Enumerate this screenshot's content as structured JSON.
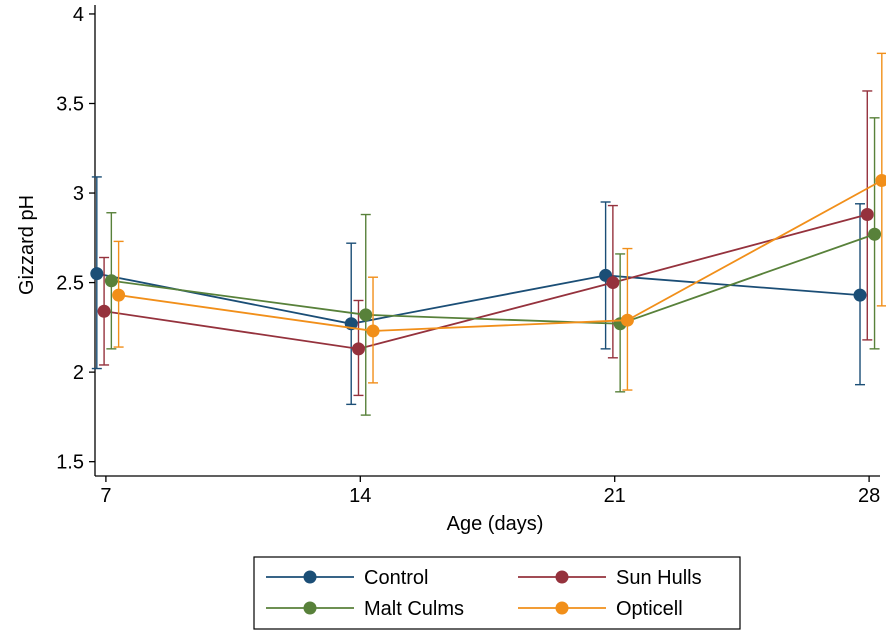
{
  "chart_data": {
    "type": "line",
    "xlabel": "Age (days)",
    "ylabel": "Gizzard pH",
    "x_ticks": [
      7,
      14,
      21,
      28
    ],
    "y_ticks": [
      1.5,
      2,
      2.5,
      3,
      3.5,
      4
    ],
    "y_tick_labels": [
      "1.5",
      "2",
      "2.5",
      "3",
      "3.5",
      "4"
    ],
    "xlim": [
      6.7,
      28.3
    ],
    "ylim": [
      1.42,
      4.05
    ],
    "grid": false,
    "legend_position": "bottom",
    "series": [
      {
        "name": "Control",
        "color": "#1b4e76",
        "x": [
          6.75,
          13.75,
          20.75,
          27.75
        ],
        "y": [
          2.55,
          2.27,
          2.54,
          2.43
        ],
        "err_low": [
          2.02,
          1.82,
          2.13,
          1.93
        ],
        "err_high": [
          3.09,
          2.72,
          2.95,
          2.94
        ]
      },
      {
        "name": "Sun Hulls",
        "color": "#95323d",
        "x": [
          6.95,
          13.95,
          20.95,
          27.95
        ],
        "y": [
          2.34,
          2.13,
          2.5,
          2.88
        ],
        "err_low": [
          2.04,
          1.87,
          2.08,
          2.18
        ],
        "err_high": [
          2.64,
          2.4,
          2.93,
          3.57
        ]
      },
      {
        "name": "Malt Culms",
        "color": "#58813a",
        "x": [
          7.15,
          14.15,
          21.15,
          28.15
        ],
        "y": [
          2.51,
          2.32,
          2.27,
          2.77
        ],
        "err_low": [
          2.13,
          1.76,
          1.89,
          2.13
        ],
        "err_high": [
          2.89,
          2.88,
          2.66,
          3.42
        ]
      },
      {
        "name": "Opticell",
        "color": "#f18f1a",
        "x": [
          7.35,
          14.35,
          21.35,
          28.35
        ],
        "y": [
          2.43,
          2.23,
          2.29,
          3.07
        ],
        "err_low": [
          2.14,
          1.94,
          1.9,
          2.37
        ],
        "err_high": [
          2.73,
          2.53,
          2.69,
          3.78
        ]
      }
    ]
  }
}
